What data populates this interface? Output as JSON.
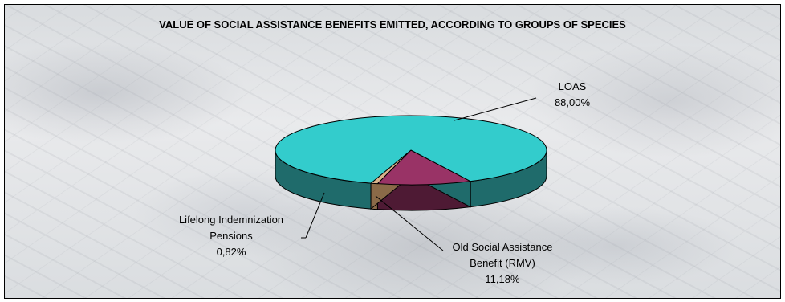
{
  "chart_data": {
    "type": "pie",
    "title": "VALUE OF SOCIAL ASSISTANCE BENEFITS EMITTED, ACCORDING TO GROUPS OF SPECIES",
    "slices": [
      {
        "label_lines": [
          "LOAS"
        ],
        "value_text": "88,00%",
        "value": 88.0,
        "color": "#33CCCC",
        "side_color": "#1F6B6B"
      },
      {
        "label_lines": [
          "Old Social Assistance",
          "Benefit (RMV)"
        ],
        "value_text": "11,18%",
        "value": 11.18,
        "color": "#993366",
        "side_color": "#4E1A34"
      },
      {
        "label_lines": [
          "Lifelong Indemnization",
          "Pensions"
        ],
        "value_text": "0,82%",
        "value": 0.82,
        "color": "#D9B38C",
        "side_color": "#8A6A48"
      }
    ]
  }
}
